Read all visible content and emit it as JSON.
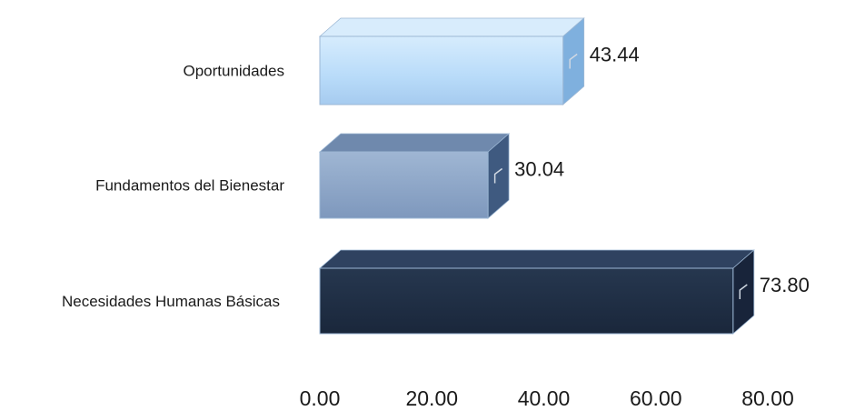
{
  "chart_data": {
    "type": "bar",
    "orientation": "horizontal",
    "style": "3d",
    "categories": [
      "Oportunidades",
      "Fundamentos del Bienestar",
      "Necesidades Humanas Básicas"
    ],
    "values": [
      43.44,
      30.04,
      73.8
    ],
    "value_labels": [
      "43.44",
      "30.04",
      "73.80"
    ],
    "xlim": [
      0,
      80
    ],
    "x_ticks": [
      "0.00",
      "20.00",
      "40.00",
      "60.00",
      "80.00"
    ],
    "colors": {
      "Oportunidades": {
        "front": "#bfe0fb",
        "top": "#d8ecfc",
        "side": "#7fb0de"
      },
      "Fundamentos del Bienestar": {
        "front": "#8fa7c7",
        "top": "#6f89ad",
        "side": "#3f5a80"
      },
      "Necesidades Humanas Básicas": {
        "front": "#1f2e44",
        "top": "#2f4260",
        "side": "#18243a"
      }
    },
    "grid": false,
    "legend": "none"
  }
}
